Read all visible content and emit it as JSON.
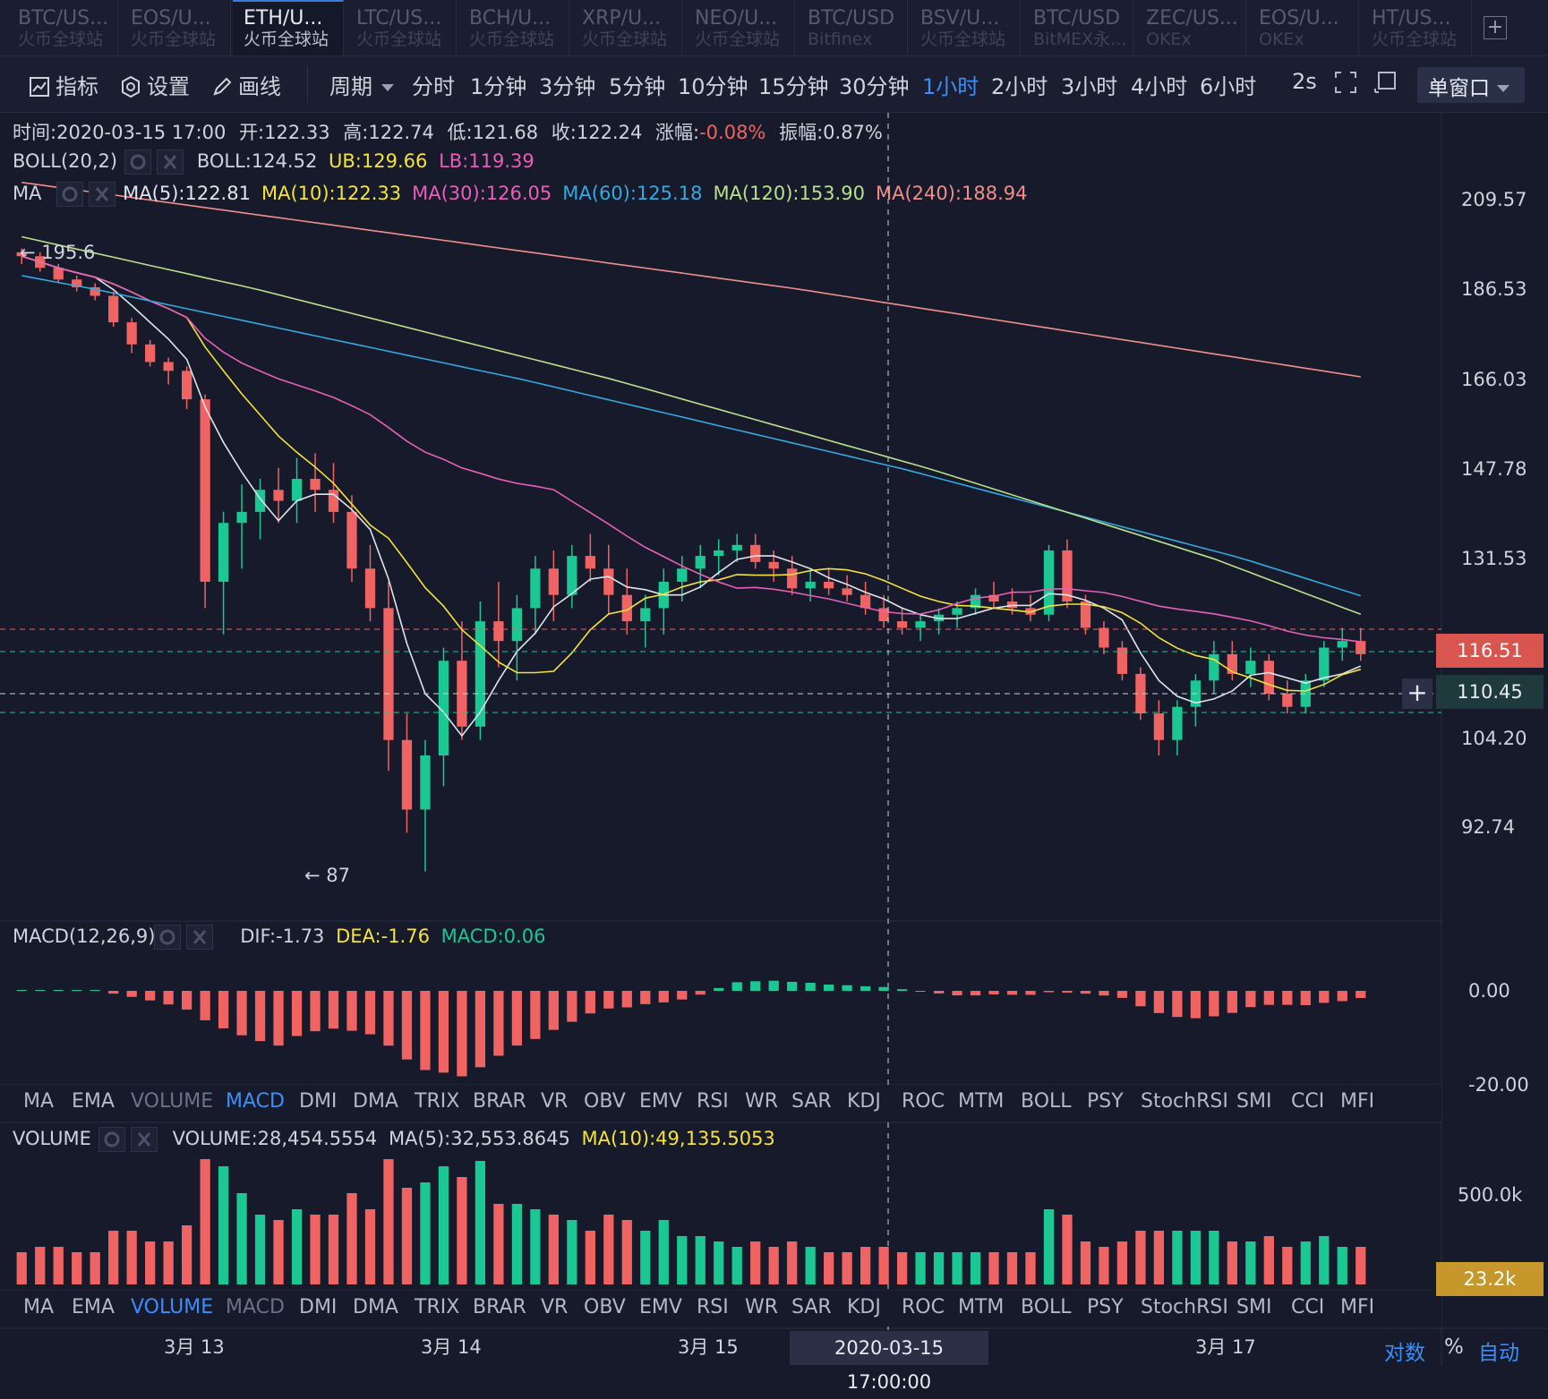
{
  "symbol_tabs": [
    {
      "name": "BTC/US...",
      "exchange": "火币全球站",
      "active": false
    },
    {
      "name": "EOS/U...",
      "exchange": "火币全球站",
      "active": false
    },
    {
      "name": "ETH/U...",
      "exchange": "火币全球站",
      "active": true
    },
    {
      "name": "LTC/US...",
      "exchange": "火币全球站",
      "active": false
    },
    {
      "name": "BCH/U...",
      "exchange": "火币全球站",
      "active": false
    },
    {
      "name": "XRP/U...",
      "exchange": "火币全球站",
      "active": false
    },
    {
      "name": "NEO/U...",
      "exchange": "火币全球站",
      "active": false
    },
    {
      "name": "BTC/USD",
      "exchange": "Bitfinex",
      "active": false
    },
    {
      "name": "BSV/U...",
      "exchange": "火币全球站",
      "active": false
    },
    {
      "name": "BTC/USD",
      "exchange": "BitMEX永...",
      "active": false
    },
    {
      "name": "ZEC/US...",
      "exchange": "OKEx",
      "active": false
    },
    {
      "name": "EOS/U...",
      "exchange": "OKEx",
      "active": false
    },
    {
      "name": "HT/US...",
      "exchange": "火币全球站",
      "active": false
    }
  ],
  "add_tab_label": "+",
  "toolbar": {
    "indicators": "指标",
    "settings": "设置",
    "draw": "画线",
    "period": "周期",
    "intervals": [
      "分时",
      "1分钟",
      "3分钟",
      "5分钟",
      "10分钟",
      "15分钟",
      "30分钟",
      "1小时",
      "2小时",
      "3小时",
      "4小时",
      "6小时"
    ],
    "active_interval": "1小时",
    "refresh": "2s",
    "window_mode": "单窗口"
  },
  "ohlc": {
    "time_label": "时间:",
    "time": "2020-03-15 17:00",
    "open_label": "开:",
    "open": "122.33",
    "high_label": "高:",
    "high": "122.74",
    "low_label": "低:",
    "low": "121.68",
    "close_label": "收:",
    "close": "122.24",
    "change_label": "涨幅:",
    "change": "-0.08%",
    "amplitude_label": "振幅:",
    "amplitude": "0.87%"
  },
  "boll_legend": {
    "name": "BOLL(20,2)",
    "mid": "BOLL:124.52",
    "ub": "UB:129.66",
    "lb": "LB:119.39"
  },
  "ma_legend": {
    "name": "MA",
    "items": [
      {
        "text": "MA(5):122.81",
        "color": "#e0e3ea"
      },
      {
        "text": "MA(10):122.33",
        "color": "#f5e23a"
      },
      {
        "text": "MA(30):126.05",
        "color": "#e75fb8"
      },
      {
        "text": "MA(60):125.18",
        "color": "#33a9e0"
      },
      {
        "text": "MA(120):153.90",
        "color": "#b9e08c"
      },
      {
        "text": "MA(240):188.94",
        "color": "#f08f89"
      }
    ]
  },
  "macd_legend": {
    "name": "MACD(12,26,9)",
    "dif": "DIF:-1.73",
    "dea": "DEA:-1.76",
    "macd": "MACD:0.06"
  },
  "volume_legend": {
    "name": "VOLUME",
    "vol": "VOLUME:28,454.5554",
    "ma5": "MA(5):32,553.8645",
    "ma10": "MA(10):49,135.5053"
  },
  "indicator_tabs": [
    "MA",
    "EMA",
    "VOLUME",
    "MACD",
    "DMI",
    "DMA",
    "TRIX",
    "BRAR",
    "VR",
    "OBV",
    "EMV",
    "RSI",
    "WR",
    "SAR",
    "KDJ",
    "ROC",
    "MTM",
    "BOLL",
    "PSY",
    "StochRSI",
    "SMI",
    "CCI",
    "MFI"
  ],
  "indicator_tabs_upper_active": "MACD",
  "indicator_tabs_lower_active": "VOLUME",
  "high_marker": "← 195.6",
  "low_marker": "← 87",
  "last_price": "116.51",
  "cursor_price": "110.45",
  "volume_tag": "23.2k",
  "cursor_time": "2020-03-15 17:00:00",
  "bottom_controls": {
    "log": "对数",
    "percent": "%",
    "auto": "自动"
  },
  "colors": {
    "up": "#1bc792",
    "down": "#ef6463",
    "background": "#161a2b",
    "accent": "#3d8ef8",
    "volume_tag": "#c6972a"
  },
  "chart_data": {
    "type": "candlestick",
    "x_ticks": [
      "3月 13",
      "3月 14",
      "3月 15",
      "3月 17"
    ],
    "price_axis_ticks": [
      "209.57",
      "186.53",
      "166.03",
      "147.78",
      "131.53",
      "104.20",
      "92.74"
    ],
    "macd_axis_ticks": [
      "0.00",
      "-20.00"
    ],
    "volume_axis_ticks": [
      "500.0k"
    ],
    "candles_ohlc": [
      [
        196,
        197,
        193,
        195
      ],
      [
        195,
        196,
        191,
        192
      ],
      [
        192,
        193,
        188,
        189
      ],
      [
        189,
        190,
        186,
        187
      ],
      [
        187,
        188,
        184,
        185
      ],
      [
        185,
        186,
        178,
        179
      ],
      [
        179,
        180,
        172,
        174
      ],
      [
        174,
        175,
        169,
        170
      ],
      [
        170,
        171,
        165,
        168
      ],
      [
        168,
        169,
        160,
        162
      ],
      [
        162,
        163,
        124,
        128
      ],
      [
        128,
        140,
        120,
        138
      ],
      [
        138,
        145,
        130,
        140
      ],
      [
        140,
        146,
        135,
        144
      ],
      [
        144,
        148,
        138,
        142
      ],
      [
        142,
        150,
        138,
        146
      ],
      [
        146,
        151,
        140,
        144
      ],
      [
        144,
        149,
        138,
        140
      ],
      [
        140,
        143,
        128,
        130
      ],
      [
        130,
        134,
        122,
        124
      ],
      [
        124,
        128,
        100,
        104
      ],
      [
        104,
        108,
        92,
        95
      ],
      [
        95,
        104,
        87,
        102
      ],
      [
        102,
        118,
        98,
        116
      ],
      [
        116,
        122,
        104,
        106
      ],
      [
        106,
        125,
        104,
        122
      ],
      [
        122,
        128,
        115,
        119
      ],
      [
        119,
        126,
        113,
        124
      ],
      [
        124,
        132,
        120,
        130
      ],
      [
        130,
        133,
        122,
        126
      ],
      [
        126,
        134,
        124,
        132
      ],
      [
        132,
        136,
        128,
        130
      ],
      [
        130,
        134,
        123,
        126
      ],
      [
        126,
        130,
        120,
        122
      ],
      [
        122,
        126,
        118,
        124
      ],
      [
        124,
        130,
        120,
        128
      ],
      [
        128,
        132,
        125,
        130
      ],
      [
        130,
        134,
        127,
        132
      ],
      [
        132,
        135,
        129,
        133
      ],
      [
        133,
        136,
        131,
        134
      ],
      [
        134,
        136,
        130,
        131
      ],
      [
        131,
        133,
        128,
        130
      ],
      [
        130,
        132,
        126,
        127
      ],
      [
        127,
        130,
        125,
        128
      ],
      [
        128,
        130,
        126,
        127
      ],
      [
        127,
        129,
        125,
        126
      ],
      [
        126,
        128,
        123,
        124
      ],
      [
        124,
        126,
        121,
        122
      ],
      [
        122,
        124,
        120,
        121
      ],
      [
        121,
        123,
        119,
        122
      ],
      [
        122,
        124,
        120,
        123
      ],
      [
        123,
        125,
        121,
        124
      ],
      [
        124,
        127,
        123,
        126
      ],
      [
        126,
        128,
        124,
        125
      ],
      [
        125,
        127,
        123,
        124
      ],
      [
        124,
        126,
        122,
        123
      ],
      [
        123,
        134,
        122,
        133
      ],
      [
        133,
        135,
        124,
        125
      ],
      [
        125,
        126,
        120,
        121
      ],
      [
        121,
        122,
        117,
        118
      ],
      [
        118,
        119,
        113,
        114
      ],
      [
        114,
        115,
        107,
        108
      ],
      [
        108,
        110,
        102,
        104
      ],
      [
        104,
        110,
        102,
        109
      ],
      [
        109,
        114,
        106,
        113
      ],
      [
        113,
        119,
        111,
        117
      ],
      [
        117,
        119,
        113,
        114
      ],
      [
        114,
        118,
        112,
        116
      ],
      [
        116,
        117,
        110,
        111
      ],
      [
        111,
        113,
        108,
        109
      ],
      [
        109,
        114,
        108,
        113
      ],
      [
        113,
        119,
        112,
        118
      ],
      [
        118,
        121,
        116,
        119
      ],
      [
        119,
        121,
        116,
        117
      ]
    ]
  }
}
